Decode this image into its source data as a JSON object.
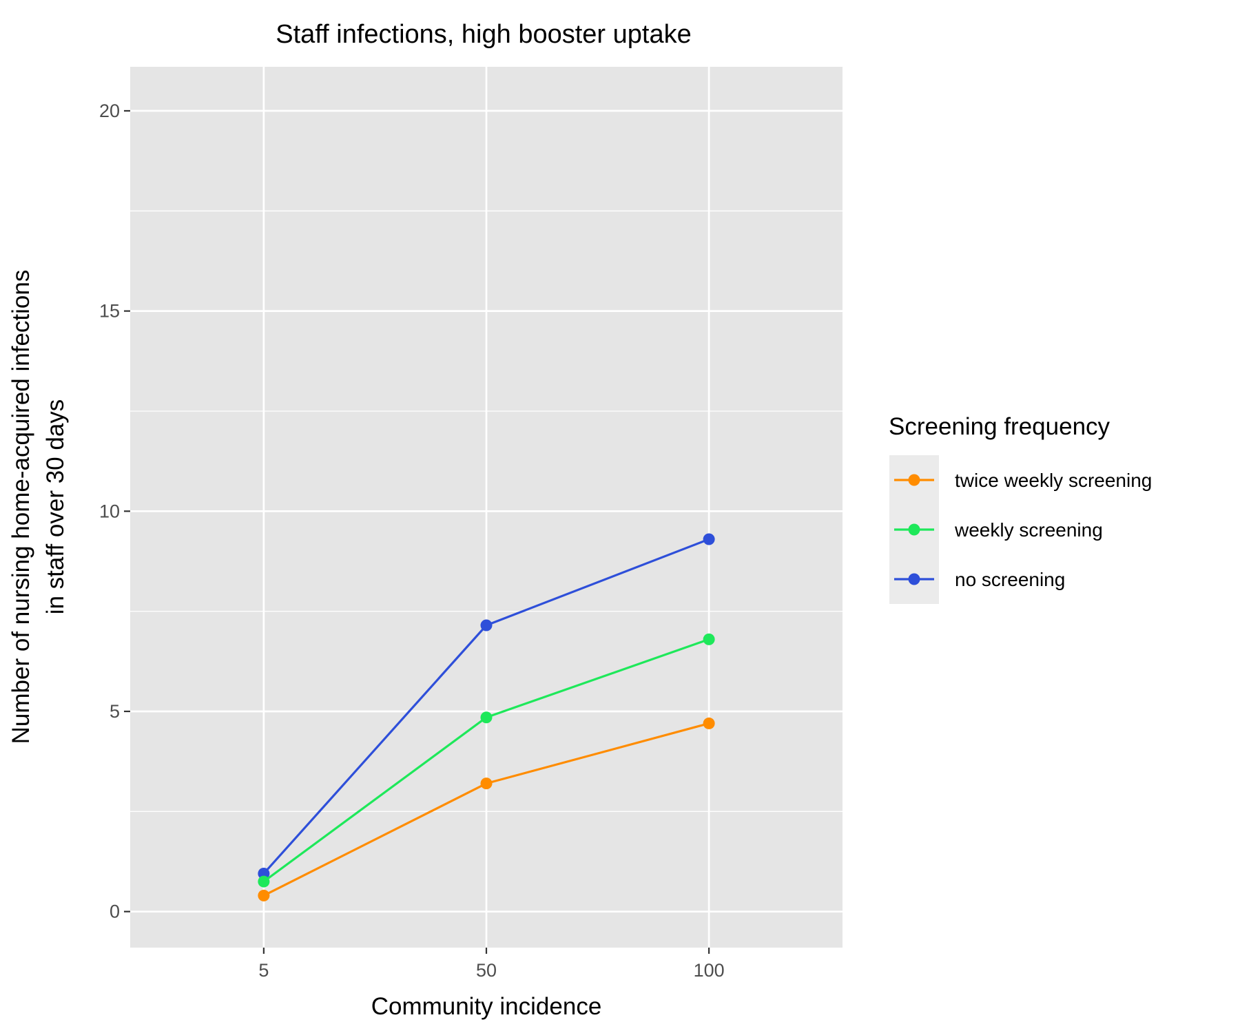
{
  "chart_data": {
    "type": "line",
    "title": "Staff infections, high booster uptake",
    "xlabel": "Community incidence",
    "ylabel_lines": [
      "Number of nursing home-acquired infections",
      "in staff over 30 days"
    ],
    "categories": [
      "5",
      "50",
      "100"
    ],
    "y_ticks": [
      0,
      5,
      10,
      15,
      20
    ],
    "ylim": [
      -0.9,
      21.1
    ],
    "grid": true,
    "legend": {
      "title": "Screening frequency",
      "placement": "right"
    },
    "series": [
      {
        "name": "twice weekly screening",
        "color": "#ff8c00",
        "values": [
          0.4,
          3.2,
          4.7
        ]
      },
      {
        "name": "weekly screening",
        "color": "#1ee85a",
        "values": [
          0.75,
          4.85,
          6.8
        ]
      },
      {
        "name": "no screening",
        "color": "#2e4fd9",
        "values": [
          0.95,
          7.15,
          9.3
        ]
      }
    ]
  }
}
